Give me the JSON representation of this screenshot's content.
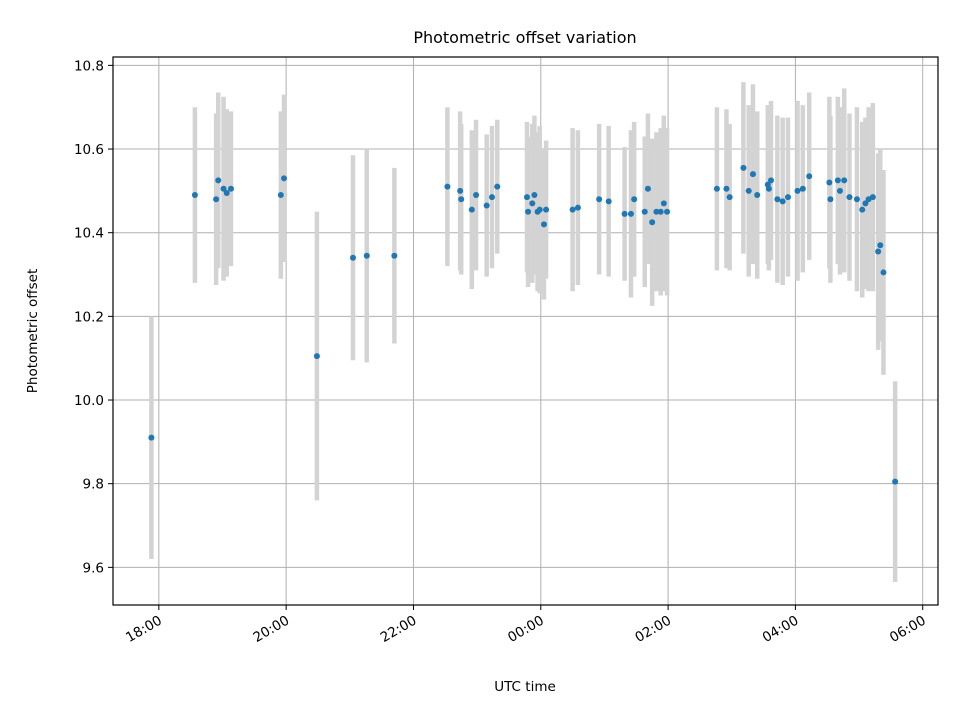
{
  "chart_data": {
    "type": "scatter",
    "title": "Photometric offset variation",
    "xlabel": "UTC time",
    "ylabel": "Photometric offset",
    "x_tick_labels": [
      "18:00",
      "20:00",
      "22:00",
      "00:00",
      "02:00",
      "04:00",
      "06:00"
    ],
    "x_tick_hours": [
      18,
      20,
      22,
      24,
      26,
      28,
      30
    ],
    "y_ticks": [
      9.6,
      9.8,
      10.0,
      10.2,
      10.4,
      10.6,
      10.8
    ],
    "y_tick_labels": [
      "9.6",
      "9.8",
      "10.0",
      "10.2",
      "10.4",
      "10.6",
      "10.8"
    ],
    "xlim_hours": [
      17.28,
      30.24
    ],
    "ylim": [
      9.51,
      10.82
    ],
    "grid": true,
    "colors": {
      "point": "#1f77b4",
      "error_bar": "#d3d3d3",
      "grid": "#b0b0b0"
    },
    "series": [
      {
        "x": [
          "17:53",
          "18:34",
          "18:54",
          "18:56",
          "19:01",
          "19:04",
          "19:08",
          "19:55",
          "19:58",
          "20:29",
          "21:03",
          "21:16",
          "21:42",
          "22:32",
          "22:44",
          "22:45",
          "22:55",
          "22:59",
          "23:09",
          "23:14",
          "23:19",
          "23:47",
          "23:48",
          "23:52",
          "23:54",
          "23:57",
          "23:59",
          "00:03",
          "00:05",
          "00:30",
          "00:35",
          "00:55",
          "01:04",
          "01:19",
          "01:25",
          "01:28",
          "01:38",
          "01:41",
          "01:45",
          "01:49",
          "01:53",
          "01:56",
          "01:59",
          "02:46",
          "02:55",
          "02:58",
          "03:11",
          "03:16",
          "03:20",
          "03:24",
          "03:34",
          "03:35",
          "03:37",
          "03:43",
          "03:48",
          "03:53",
          "04:02",
          "04:07",
          "04:13",
          "04:32",
          "04:33",
          "04:40",
          "04:42",
          "04:46",
          "04:51",
          "04:58",
          "05:03",
          "05:06",
          "05:09",
          "05:13",
          "05:18",
          "05:20",
          "05:23",
          "05:34"
        ],
        "y": [
          9.91,
          10.49,
          10.48,
          10.525,
          10.505,
          10.495,
          10.505,
          10.49,
          10.53,
          10.105,
          10.34,
          10.345,
          10.345,
          10.51,
          10.5,
          10.48,
          10.455,
          10.49,
          10.465,
          10.485,
          10.51,
          10.485,
          10.45,
          10.47,
          10.49,
          10.45,
          10.455,
          10.42,
          10.455,
          10.455,
          10.46,
          10.48,
          10.475,
          10.445,
          10.445,
          10.48,
          10.45,
          10.505,
          10.425,
          10.45,
          10.45,
          10.47,
          10.45,
          10.505,
          10.505,
          10.485,
          10.555,
          10.5,
          10.54,
          10.49,
          10.515,
          10.505,
          10.525,
          10.48,
          10.475,
          10.485,
          10.5,
          10.505,
          10.535,
          10.52,
          10.48,
          10.525,
          10.5,
          10.525,
          10.485,
          10.48,
          10.455,
          10.47,
          10.48,
          10.485,
          10.355,
          10.37,
          10.305,
          9.805
        ],
        "yerr": [
          0.29,
          0.21,
          0.205,
          0.21,
          0.22,
          0.2,
          0.185,
          0.2,
          0.2,
          0.345,
          0.245,
          0.255,
          0.21,
          0.19,
          0.19,
          0.18,
          0.19,
          0.18,
          0.17,
          0.17,
          0.16,
          0.18,
          0.18,
          0.19,
          0.19,
          0.19,
          0.2,
          0.18,
          0.165,
          0.195,
          0.185,
          0.18,
          0.18,
          0.16,
          0.2,
          0.185,
          0.18,
          0.18,
          0.2,
          0.19,
          0.2,
          0.21,
          0.2,
          0.195,
          0.19,
          0.175,
          0.205,
          0.205,
          0.215,
          0.2,
          0.19,
          0.195,
          0.19,
          0.2,
          0.2,
          0.19,
          0.215,
          0.2,
          0.2,
          0.205,
          0.2,
          0.2,
          0.2,
          0.22,
          0.2,
          0.22,
          0.21,
          0.205,
          0.22,
          0.225,
          0.235,
          0.23,
          0.245,
          0.24
        ]
      }
    ]
  }
}
